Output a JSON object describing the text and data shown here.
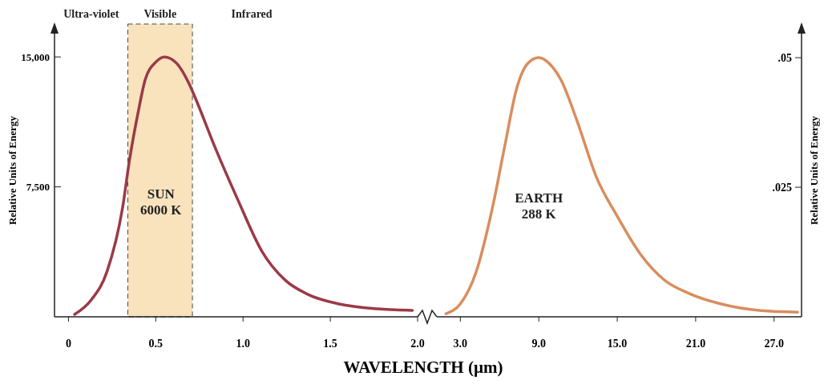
{
  "chart_data": [
    {
      "type": "line",
      "xlabel": "WAVELENGTH (µm)",
      "ylabel": "Relative Units of Energy",
      "xlim": [
        -0.08,
        2.0
      ],
      "ylim": [
        0,
        16900
      ],
      "xticks": [
        0,
        0.5,
        {
          "value": 1,
          "label": "1.0"
        },
        1.5,
        {
          "value": 2,
          "label": "2.0"
        }
      ],
      "yticks": [
        {
          "value": 7500,
          "label": "7,500"
        },
        {
          "value": 15000,
          "label": "15,000"
        }
      ],
      "series": [
        {
          "color": "#9b3a48",
          "x": [
            0.035,
            0.13,
            0.22,
            0.31,
            0.35,
            0.4,
            0.44,
            0.5,
            0.55,
            0.62,
            0.69,
            0.73,
            0.84,
            0.97,
            1.11,
            1.24,
            1.37,
            1.55,
            1.77,
            1.97
          ],
          "values": [
            140,
            970,
            2590,
            6300,
            9070,
            11850,
            13700,
            14700,
            15000,
            14630,
            13470,
            12550,
            9770,
            6760,
            3750,
            2130,
            1300,
            740,
            460,
            370
          ]
        }
      ],
      "bands": [
        {
          "axis": "x",
          "from": 0.34,
          "to": 0.71,
          "label": "Visible",
          "color": "#f8e3bd"
        }
      ],
      "annotations": [
        "Ultra-violet",
        "Infrared",
        "SUN\n6000 K"
      ],
      "marker": "none",
      "line_style": "solid"
    },
    {
      "type": "line",
      "y2label": "Relative Units of Energy",
      "xlim": [
        1.2,
        29.1
      ],
      "y2lim": [
        0,
        0.0565
      ],
      "xticks": [
        {
          "value": 3,
          "label": "3.0"
        },
        {
          "value": 9,
          "label": "9.0"
        },
        {
          "value": 15,
          "label": "15.0"
        },
        {
          "value": 21,
          "label": "21.0"
        },
        {
          "value": 27,
          "label": "27.0"
        }
      ],
      "y2ticks": [
        {
          "value": 0.025,
          "label": ".025"
        },
        {
          "value": 0.05,
          "label": ".05"
        }
      ],
      "series": [
        {
          "color": "#d98d5e",
          "axis": "y2",
          "x": [
            1.9,
            3.0,
            4.2,
            5.45,
            6.4,
            7.3,
            8.2,
            9.0,
            9.75,
            10.7,
            11.9,
            13.4,
            15.0,
            16.8,
            18.6,
            20.5,
            22.9,
            26.0,
            28.8
          ],
          "values": [
            0.0006,
            0.0025,
            0.0086,
            0.021,
            0.033,
            0.044,
            0.049,
            0.05,
            0.049,
            0.0457,
            0.038,
            0.027,
            0.0194,
            0.012,
            0.0071,
            0.0045,
            0.0025,
            0.0012,
            0.0009
          ]
        }
      ],
      "annotations": [
        "EARTH\n288 K"
      ],
      "marker": "none",
      "line_style": "solid"
    }
  ]
}
